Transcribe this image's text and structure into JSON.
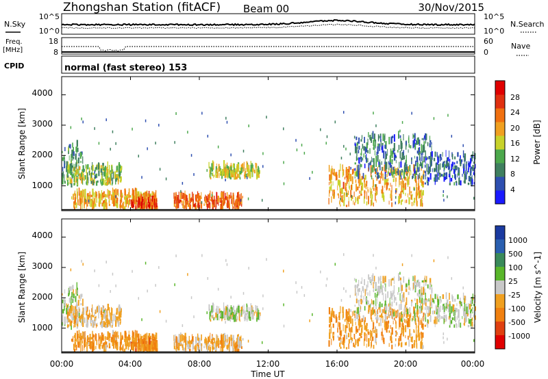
{
  "header": {
    "station": "Zhongshan Station (fitACF)",
    "beam": "Beam 00",
    "date": "30/Nov/2015"
  },
  "strip_noise": {
    "left_label": "N.Sky",
    "right_label": "N.Search",
    "left_ticks": [
      "10^5",
      "10^0"
    ],
    "right_ticks": [
      "10^5",
      "10^0"
    ],
    "sky_line_color": "#000000"
  },
  "strip_freq": {
    "left_label_1": "Freq.",
    "left_label_2": "[MHz]",
    "left_ticks": [
      "18",
      "8"
    ],
    "right_label": "Nave",
    "right_ticks": [
      "60",
      "0"
    ]
  },
  "strip_cpid": {
    "left_label": "CPID",
    "program": "normal (fast stereo) 153"
  },
  "power_panel": {
    "ylabel": "Slant Range [km]",
    "yticks": [
      "4000",
      "3000",
      "2000",
      "1000"
    ],
    "colorbar_label": "Power [dB]",
    "colorbar_ticks": [
      "28",
      "24",
      "20",
      "16",
      "12",
      "8",
      "4"
    ],
    "colors": [
      "#1a1aff",
      "#2e4fb0",
      "#3f7f5f",
      "#4ca84c",
      "#c8d22a",
      "#f0a020",
      "#f07010",
      "#e03010",
      "#e00000"
    ]
  },
  "velocity_panel": {
    "ylabel": "Slant Range [km]",
    "yticks": [
      "4000",
      "3000",
      "2000",
      "1000"
    ],
    "colorbar_label": "Velocity [m s^-1]",
    "colorbar_ticks": [
      "1000",
      "500",
      "100",
      "25",
      "-25",
      "-100",
      "-500",
      "-1000"
    ],
    "colors": [
      "#1a3aa0",
      "#2a5fb0",
      "#3a8a5a",
      "#59b62a",
      "#c8c8c8",
      "#f0a020",
      "#f08010",
      "#e04010",
      "#e00000"
    ]
  },
  "xaxis": {
    "ticks": [
      "00:00",
      "04:00",
      "08:00",
      "12:00",
      "16:00",
      "20:00",
      "00:00"
    ],
    "label": "Time UT"
  },
  "chart_data": {
    "type": "heatmap",
    "title": "Zhongshan Station (fitACF)",
    "subtitle": "Beam 00",
    "date": "30/Nov/2015",
    "xlabel": "Time UT",
    "ylabel": "Slant Range [km]",
    "xlim_hours": [
      0,
      24
    ],
    "ylim_km": [
      180,
      4600
    ],
    "power_scale_db": [
      0,
      32
    ],
    "velocity_scale_mps": [
      -1000,
      1000
    ],
    "scatter_regions": [
      {
        "t_start": 0.0,
        "t_end": 1.2,
        "r_min": 900,
        "r_max": 2300,
        "power_db": 10,
        "velocity": 50
      },
      {
        "t_start": 0.3,
        "t_end": 3.5,
        "r_min": 1000,
        "r_max": 1600,
        "power_db": 14,
        "velocity": -150
      },
      {
        "t_start": 0.5,
        "t_end": 5.5,
        "r_min": 200,
        "r_max": 700,
        "power_db": 20,
        "velocity": -300
      },
      {
        "t_start": 4.0,
        "t_end": 5.5,
        "r_min": 200,
        "r_max": 500,
        "power_db": 26,
        "velocity": -400
      },
      {
        "t_start": 6.5,
        "t_end": 10.5,
        "r_min": 200,
        "r_max": 600,
        "power_db": 24,
        "velocity": -200
      },
      {
        "t_start": 8.5,
        "t_end": 11.5,
        "r_min": 1200,
        "r_max": 1600,
        "power_db": 16,
        "velocity": 20
      },
      {
        "t_start": 15.5,
        "t_end": 21.0,
        "r_min": 300,
        "r_max": 1500,
        "power_db": 20,
        "velocity": -300
      },
      {
        "t_start": 17.0,
        "t_end": 21.5,
        "r_min": 1200,
        "r_max": 2600,
        "power_db": 8,
        "velocity": 10
      },
      {
        "t_start": 21.0,
        "t_end": 24.0,
        "r_min": 1000,
        "r_max": 2000,
        "power_db": 6,
        "velocity": 20
      }
    ]
  }
}
